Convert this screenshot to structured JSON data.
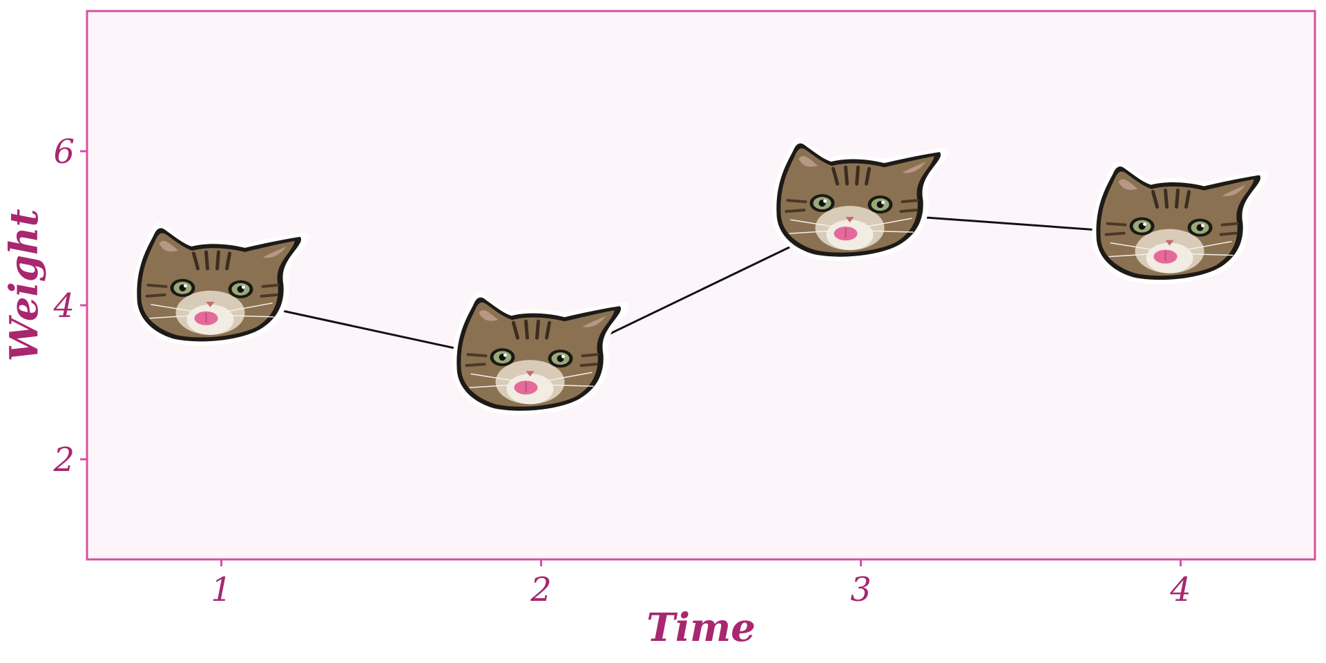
{
  "chart_data": {
    "type": "line",
    "title": "",
    "xlabel": "Time",
    "ylabel": "Weight",
    "x": [
      1,
      2,
      3,
      4
    ],
    "series": [
      {
        "name": "Weight",
        "values": [
          4.1,
          3.2,
          5.2,
          4.9
        ]
      }
    ],
    "x_ticks": [
      1,
      2,
      3,
      4
    ],
    "y_ticks": [
      2,
      4,
      6
    ],
    "xlim": [
      0.58,
      4.42
    ],
    "ylim": [
      0.7,
      7.82
    ],
    "marker": "cat-face",
    "grid": false,
    "colors": {
      "panel_background": "#fcf5fa",
      "panel_border": "#d54fa3",
      "text": "#a8276f",
      "line": "#111111"
    }
  }
}
